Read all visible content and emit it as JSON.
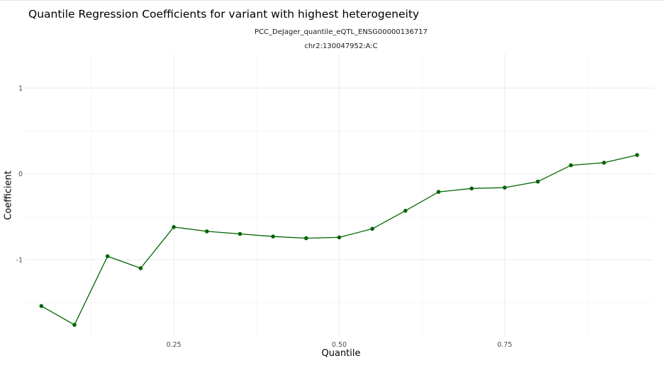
{
  "chart_data": {
    "type": "line",
    "title": "Quantile Regression Coefficients for variant with highest heterogeneity",
    "subtitle": [
      "PCC_DeJager_quantile_eQTL_ENSG00000136717",
      "chr2:130047952:A:C"
    ],
    "xlabel": "Quantile",
    "ylabel": "Coefficient",
    "xlim": [
      0.025,
      0.975
    ],
    "ylim": [
      -1.9,
      1.4
    ],
    "x_ticks": [
      0.25,
      0.5,
      0.75
    ],
    "x_tick_labels": [
      "0.25",
      "0.50",
      "0.75"
    ],
    "y_ticks": [
      -1,
      0,
      1
    ],
    "y_tick_labels": [
      "-1",
      "0",
      "1"
    ],
    "grid": true,
    "legend": "none",
    "series": [
      {
        "color": "#006400",
        "x": [
          0.05,
          0.1,
          0.15,
          0.2,
          0.25,
          0.3,
          0.35,
          0.4,
          0.45,
          0.5,
          0.55,
          0.6,
          0.65,
          0.7,
          0.75,
          0.8,
          0.85,
          0.9,
          0.95
        ],
        "y": [
          -1.54,
          -1.76,
          -0.96,
          -1.1,
          -0.62,
          -0.67,
          -0.7,
          -0.73,
          -0.75,
          -0.74,
          -0.64,
          -0.43,
          -0.21,
          -0.17,
          -0.16,
          -0.09,
          0.1,
          0.13,
          0.22
        ]
      }
    ]
  }
}
